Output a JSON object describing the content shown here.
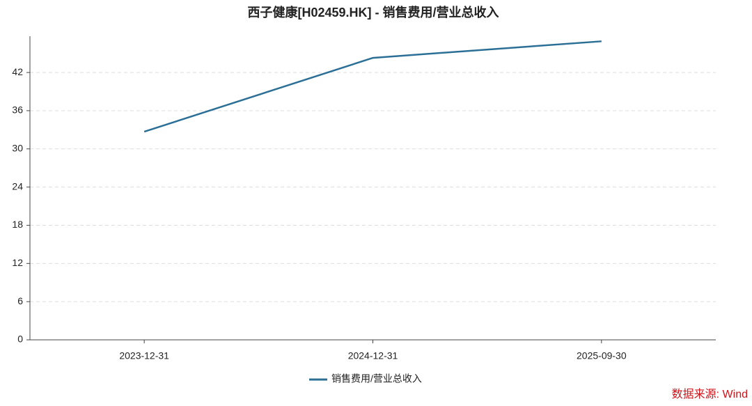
{
  "chart_data": {
    "type": "line",
    "title": "西子健康[H02459.HK] - 销售费用/营业总收入",
    "categories": [
      "2023-12-31",
      "2024-12-31",
      "2025-09-30"
    ],
    "series": [
      {
        "name": "销售费用/营业总收入",
        "color": "#2b6f96",
        "values": [
          32.7,
          44.3,
          46.9
        ]
      }
    ],
    "ylim": [
      0,
      47.7
    ],
    "yticks": [
      0,
      6,
      12,
      18,
      24,
      30,
      36,
      42
    ],
    "grid": true,
    "legend": "bottom",
    "source": "数据来源: Wind"
  }
}
